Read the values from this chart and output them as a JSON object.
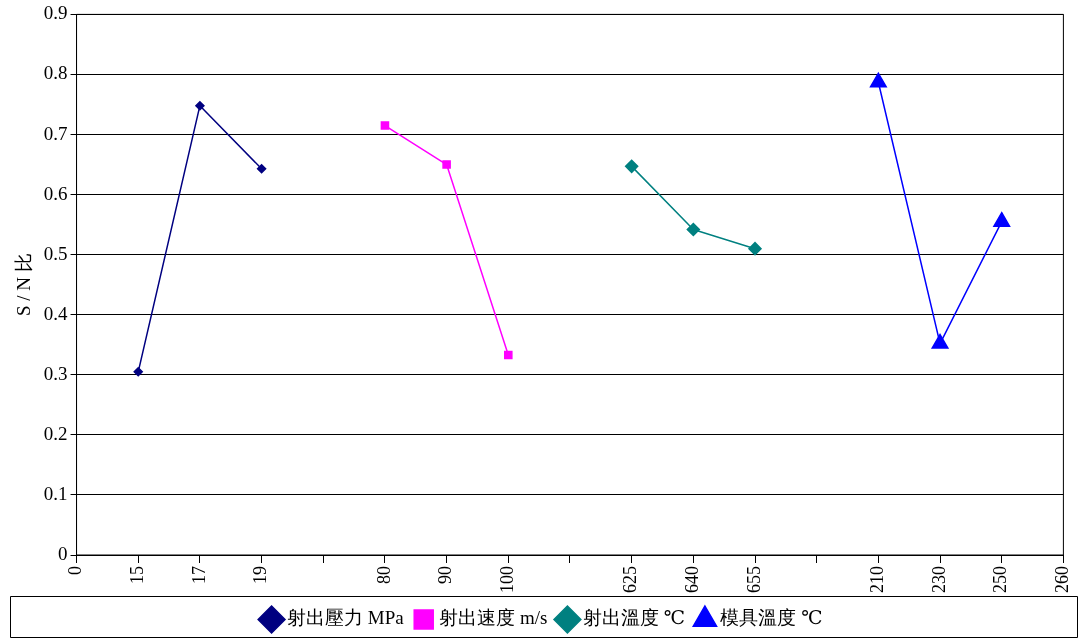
{
  "chart_data": {
    "type": "line",
    "ylabel": "S / N 比",
    "categories": [
      "0",
      "15",
      "17",
      "19",
      null,
      "80",
      "90",
      "100",
      null,
      "625",
      "640",
      "655",
      null,
      "210",
      "230",
      "250",
      "260"
    ],
    "series": [
      {
        "name": "射出壓力 MPa",
        "color": "#000080",
        "marker": "diamond",
        "values": [
          null,
          0.305,
          0.748,
          0.643,
          null,
          null,
          null,
          null,
          null,
          null,
          null,
          null,
          null,
          null,
          null,
          null,
          null
        ]
      },
      {
        "name": "射出速度 m/s",
        "color": "#ff00ff",
        "marker": "square",
        "values": [
          null,
          null,
          null,
          null,
          null,
          0.715,
          0.65,
          0.333,
          null,
          null,
          null,
          null,
          null,
          null,
          null,
          null,
          null
        ]
      },
      {
        "name": "射出溫度 ℃",
        "color": "#008080",
        "marker": "diamond",
        "values": [
          null,
          null,
          null,
          null,
          null,
          null,
          null,
          null,
          null,
          0.647,
          0.542,
          0.51,
          null,
          null,
          null,
          null,
          null
        ]
      },
      {
        "name": "模具溫度 ℃",
        "color": "#0000ff",
        "marker": "triangle",
        "values": [
          null,
          null,
          null,
          null,
          null,
          null,
          null,
          null,
          null,
          null,
          null,
          null,
          null,
          0.787,
          0.352,
          0.555,
          null
        ]
      }
    ],
    "ylim": [
      0,
      0.9
    ],
    "yticks": [
      0,
      0.1,
      0.2,
      0.3,
      0.4,
      0.5,
      0.6,
      0.7,
      0.8,
      0.9
    ],
    "grid": "y",
    "legend": "bottom"
  }
}
